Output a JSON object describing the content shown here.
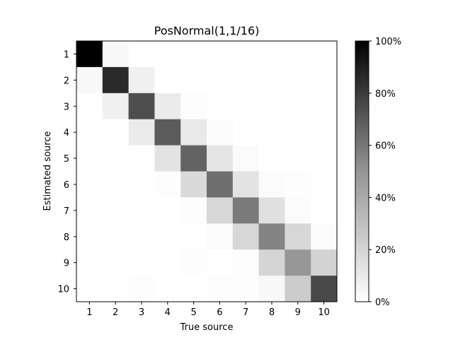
{
  "chart_data": {
    "type": "heatmap",
    "title": "PosNormal(1,1/16)",
    "xlabel": "True source",
    "ylabel": "Estimated source",
    "x_categories": [
      "1",
      "2",
      "3",
      "4",
      "5",
      "6",
      "7",
      "8",
      "9",
      "10"
    ],
    "y_categories": [
      "1",
      "2",
      "3",
      "4",
      "5",
      "6",
      "7",
      "8",
      "9",
      "10"
    ],
    "value_range": [
      0,
      100
    ],
    "value_unit": "%",
    "colormap": "Greys",
    "colorbar": {
      "ticks": [
        0,
        20,
        40,
        60,
        80,
        100
      ],
      "tick_labels": [
        "0%",
        "20%",
        "40%",
        "60%",
        "80%",
        "100%"
      ]
    },
    "values": [
      [
        100,
        3,
        0,
        0,
        0,
        0,
        0,
        0,
        0,
        0
      ],
      [
        3,
        88,
        7,
        0,
        0,
        0,
        0,
        0,
        0,
        0
      ],
      [
        0,
        7,
        75,
        9,
        1,
        0,
        0,
        0,
        0,
        0
      ],
      [
        0,
        0,
        9,
        70,
        10,
        2,
        0,
        0,
        0,
        0
      ],
      [
        0,
        0,
        0,
        13,
        67,
        12,
        2,
        0,
        0,
        0
      ],
      [
        0,
        0,
        0,
        1,
        17,
        63,
        13,
        2,
        1,
        0
      ],
      [
        0,
        0,
        0,
        0,
        1,
        18,
        58,
        14,
        2,
        0
      ],
      [
        0,
        0,
        0,
        0,
        0,
        2,
        18,
        54,
        18,
        2
      ],
      [
        0,
        0,
        0,
        0,
        1,
        0,
        1,
        19,
        46,
        20
      ],
      [
        0,
        0,
        1,
        0,
        0,
        1,
        1,
        3,
        23,
        77
      ]
    ]
  }
}
